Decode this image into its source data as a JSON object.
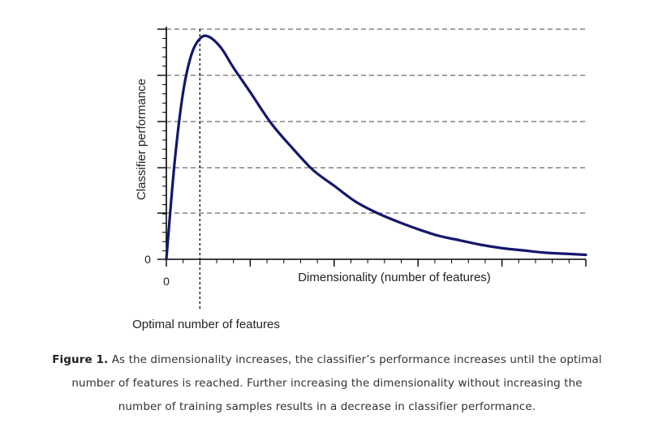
{
  "chart_data": {
    "type": "line",
    "ylabel": "Classifier performance",
    "xlabel": "Dimensionality (number of features)",
    "x_tick_label": "0",
    "y_tick_label": "0",
    "annotation": "Optimal number of features",
    "grid": true,
    "grid_style": "dashed horizontal",
    "xlim": [
      0,
      100
    ],
    "ylim": [
      0,
      100
    ],
    "line_color": "#14176b",
    "series": [
      {
        "x": [
          0,
          2,
          4,
          6,
          8,
          10,
          13,
          16,
          20,
          25,
          30,
          35,
          40,
          45,
          50,
          55,
          60,
          65,
          70,
          75,
          80,
          85,
          90,
          95,
          100
        ],
        "values": [
          0,
          44,
          75,
          92,
          99,
          100,
          95,
          86,
          75,
          61,
          50,
          40,
          33,
          26,
          21,
          17,
          13.5,
          10.5,
          8.5,
          6.5,
          5,
          4,
          3,
          2.5,
          2
        ]
      }
    ],
    "optimal_x": 8
  },
  "caption": {
    "label": "Figure 1.",
    "text": "As the dimensionality increases, the classifier’s performance increases until the optimal number of features is reached. Further increasing the dimensionality without increasing the number of training samples results in a decrease in classifier performance."
  }
}
